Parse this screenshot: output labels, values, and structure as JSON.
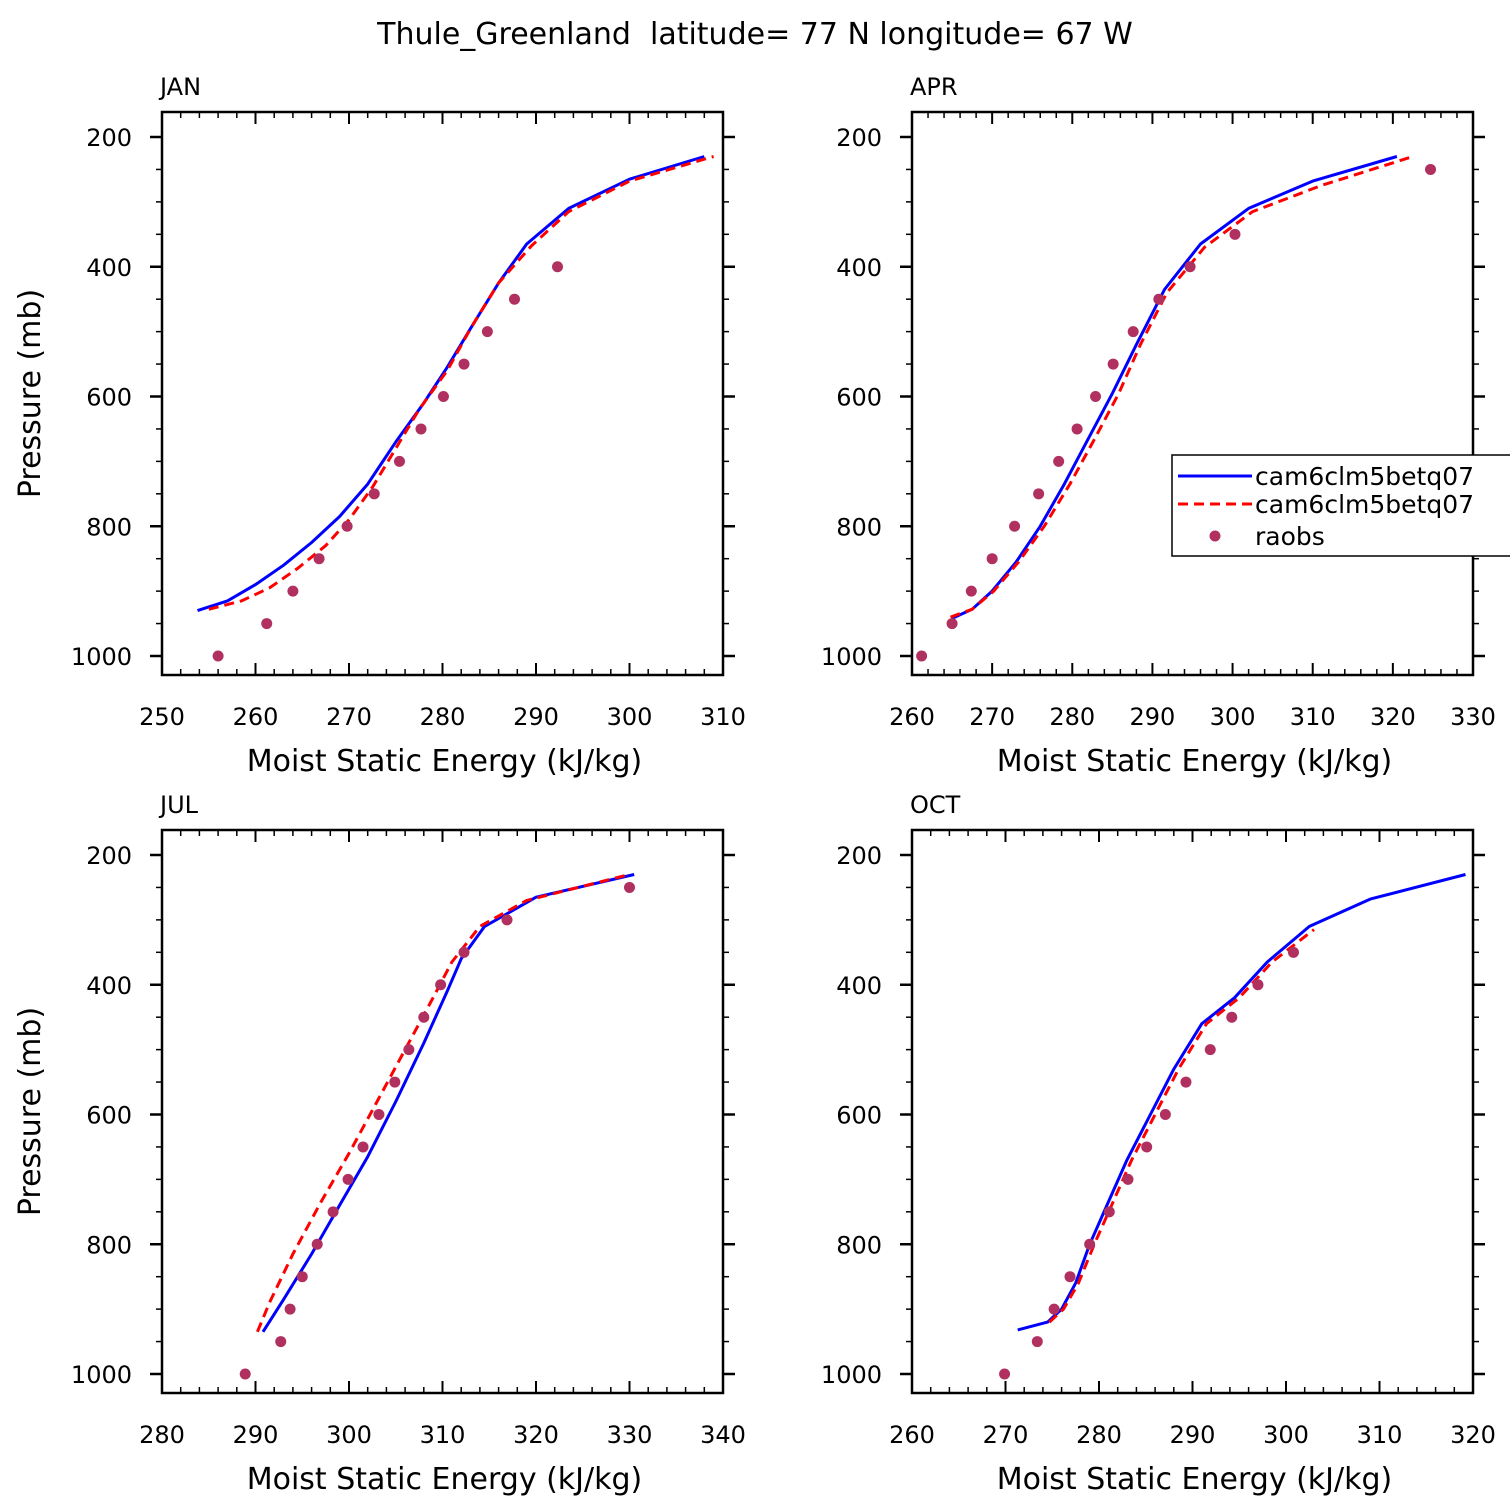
{
  "title": "Thule_Greenland  latitude= 77 N longitude= 67 W",
  "legend": {
    "entries": [
      {
        "label": "cam6clm5betq07",
        "style": "solid",
        "color": "#0000ff"
      },
      {
        "label": "cam6clm5betq07",
        "style": "dashed",
        "color": "#ff0000"
      },
      {
        "label": "raobs",
        "style": "dot",
        "color": "#b03060"
      }
    ]
  },
  "chart_data": [
    {
      "type": "line",
      "title": "JAN",
      "xlabel": "Moist Static Energy (kJ/kg)",
      "ylabel": "Pressure (mb)",
      "xlim": [
        250,
        310
      ],
      "ylim": [
        1000,
        200
      ],
      "xticks": [
        250,
        260,
        270,
        280,
        290,
        300,
        310
      ],
      "yticks": [
        200,
        400,
        600,
        800,
        1000
      ],
      "series": [
        {
          "name": "cam6clm5betq07 (solid)",
          "color": "#0000ff",
          "dash": "",
          "x": [
            253.8,
            257,
            260,
            263,
            266,
            269,
            272,
            275,
            278,
            280.5,
            283,
            286,
            289,
            293.5,
            300,
            308
          ],
          "y": [
            930,
            915,
            890,
            860,
            825,
            785,
            735,
            670,
            610,
            555,
            495,
            425,
            365,
            310,
            265,
            230
          ]
        },
        {
          "name": "cam6clm5betq07 (dashed)",
          "color": "#ff0000",
          "dash": "10,6",
          "x": [
            255,
            258.5,
            261.5,
            264.5,
            267.5,
            270,
            272.5,
            275,
            277.5,
            280.5,
            283,
            286,
            289.5,
            293.5,
            300,
            309
          ],
          "y": [
            928,
            915,
            895,
            865,
            830,
            790,
            740,
            680,
            620,
            560,
            495,
            425,
            368,
            315,
            268,
            230
          ]
        },
        {
          "name": "raobs",
          "color": "#b03060",
          "marker": "dot",
          "x": [
            256,
            261.2,
            264,
            266.8,
            269.8,
            272.7,
            275.4,
            277.7,
            280.1,
            282.3,
            284.8,
            287.7,
            292.3
          ],
          "y": [
            1000,
            950,
            900,
            850,
            800,
            750,
            700,
            650,
            600,
            550,
            500,
            450,
            400
          ]
        }
      ]
    },
    {
      "type": "line",
      "title": "APR",
      "xlabel": "Moist Static Energy (kJ/kg)",
      "ylabel": "",
      "xlim": [
        260,
        330
      ],
      "ylim": [
        1000,
        200
      ],
      "xticks": [
        260,
        270,
        280,
        290,
        300,
        310,
        320,
        330
      ],
      "yticks": [
        200,
        400,
        600,
        800,
        1000
      ],
      "series": [
        {
          "name": "cam6clm5betq07 (solid)",
          "color": "#0000ff",
          "dash": "",
          "x": [
            265,
            267.5,
            270,
            273,
            276,
            279,
            282,
            285,
            288,
            291.5,
            296,
            302,
            310,
            320.5
          ],
          "y": [
            942,
            928,
            900,
            855,
            800,
            735,
            665,
            595,
            520,
            435,
            365,
            310,
            268,
            230
          ]
        },
        {
          "name": "cam6clm5betq07 (dashed)",
          "color": "#ff0000",
          "dash": "10,6",
          "x": [
            264.8,
            267.5,
            270.2,
            273.3,
            276.5,
            279.7,
            282.8,
            285.8,
            288.5,
            291.8,
            296.5,
            302.5,
            311,
            322.5
          ],
          "y": [
            940,
            928,
            900,
            855,
            800,
            735,
            665,
            595,
            520,
            440,
            370,
            315,
            275,
            230
          ]
        },
        {
          "name": "raobs",
          "color": "#b03060",
          "marker": "dot",
          "x": [
            261.2,
            265,
            267.4,
            270,
            272.8,
            275.8,
            278.3,
            280.6,
            282.9,
            285.1,
            287.6,
            290.8,
            294.7,
            300.3,
            324.7
          ],
          "y": [
            1000,
            950,
            900,
            850,
            800,
            750,
            700,
            650,
            600,
            550,
            500,
            450,
            400,
            350,
            250
          ]
        }
      ]
    },
    {
      "type": "line",
      "title": "JUL",
      "xlabel": "Moist Static Energy (kJ/kg)",
      "ylabel": "Pressure (mb)",
      "xlim": [
        280,
        340
      ],
      "ylim": [
        1000,
        200
      ],
      "xticks": [
        280,
        290,
        300,
        310,
        320,
        330,
        340
      ],
      "yticks": [
        200,
        400,
        600,
        800,
        1000
      ],
      "series": [
        {
          "name": "cam6clm5betq07 (solid)",
          "color": "#0000ff",
          "dash": "",
          "x": [
            290.8,
            293,
            296,
            299,
            302,
            305,
            308,
            310.5,
            312,
            314.5,
            320,
            330.5
          ],
          "y": [
            935,
            885,
            815,
            740,
            665,
            580,
            490,
            410,
            360,
            310,
            265,
            230
          ]
        },
        {
          "name": "cam6clm5betq07 (dashed)",
          "color": "#ff0000",
          "dash": "10,6",
          "x": [
            290.2,
            291.5,
            294,
            297,
            300,
            303,
            306,
            309,
            311,
            314,
            319,
            330
          ],
          "y": [
            935,
            890,
            815,
            735,
            660,
            580,
            500,
            420,
            365,
            310,
            270,
            230
          ]
        },
        {
          "name": "raobs",
          "color": "#b03060",
          "marker": "dot",
          "x": [
            288.9,
            292.7,
            293.7,
            295,
            296.6,
            298.3,
            299.9,
            301.5,
            303.2,
            304.9,
            306.4,
            308,
            309.8,
            312.3,
            316.9,
            330
          ],
          "y": [
            1000,
            950,
            900,
            850,
            800,
            750,
            700,
            650,
            600,
            550,
            500,
            450,
            400,
            350,
            300,
            250
          ]
        }
      ]
    },
    {
      "type": "line",
      "title": "OCT",
      "xlabel": "Moist Static Energy (kJ/kg)",
      "ylabel": "",
      "xlim": [
        260,
        320
      ],
      "ylim": [
        1000,
        200
      ],
      "xticks": [
        260,
        270,
        280,
        290,
        300,
        310,
        320
      ],
      "yticks": [
        200,
        400,
        600,
        800,
        1000
      ],
      "series": [
        {
          "name": "cam6clm5betq07 (solid)",
          "color": "#0000ff",
          "dash": "",
          "x": [
            271.3,
            274.5,
            276,
            277.5,
            279,
            281,
            283,
            285.5,
            288,
            291,
            294.5,
            298,
            302.5,
            309,
            319.2
          ],
          "y": [
            932,
            920,
            900,
            860,
            800,
            735,
            670,
            600,
            530,
            460,
            420,
            365,
            310,
            268,
            230
          ]
        },
        {
          "name": "cam6clm5betq07 (dashed)",
          "color": "#ff0000",
          "dash": "10,6",
          "x": [
            274.7,
            276.2,
            277.8,
            279.5,
            281.5,
            283.5,
            286,
            288.5,
            291.5,
            295,
            298.5,
            303
          ],
          "y": [
            920,
            900,
            860,
            800,
            735,
            670,
            600,
            530,
            460,
            420,
            365,
            315
          ]
        },
        {
          "name": "raobs",
          "color": "#b03060",
          "marker": "dot",
          "x": [
            269.9,
            273.4,
            275.2,
            276.9,
            279,
            281.1,
            283.1,
            285.1,
            287.1,
            289.3,
            291.9,
            294.2,
            297,
            300.8
          ],
          "y": [
            1000,
            950,
            900,
            850,
            800,
            750,
            700,
            650,
            600,
            550,
            500,
            450,
            400,
            350
          ]
        }
      ]
    }
  ]
}
